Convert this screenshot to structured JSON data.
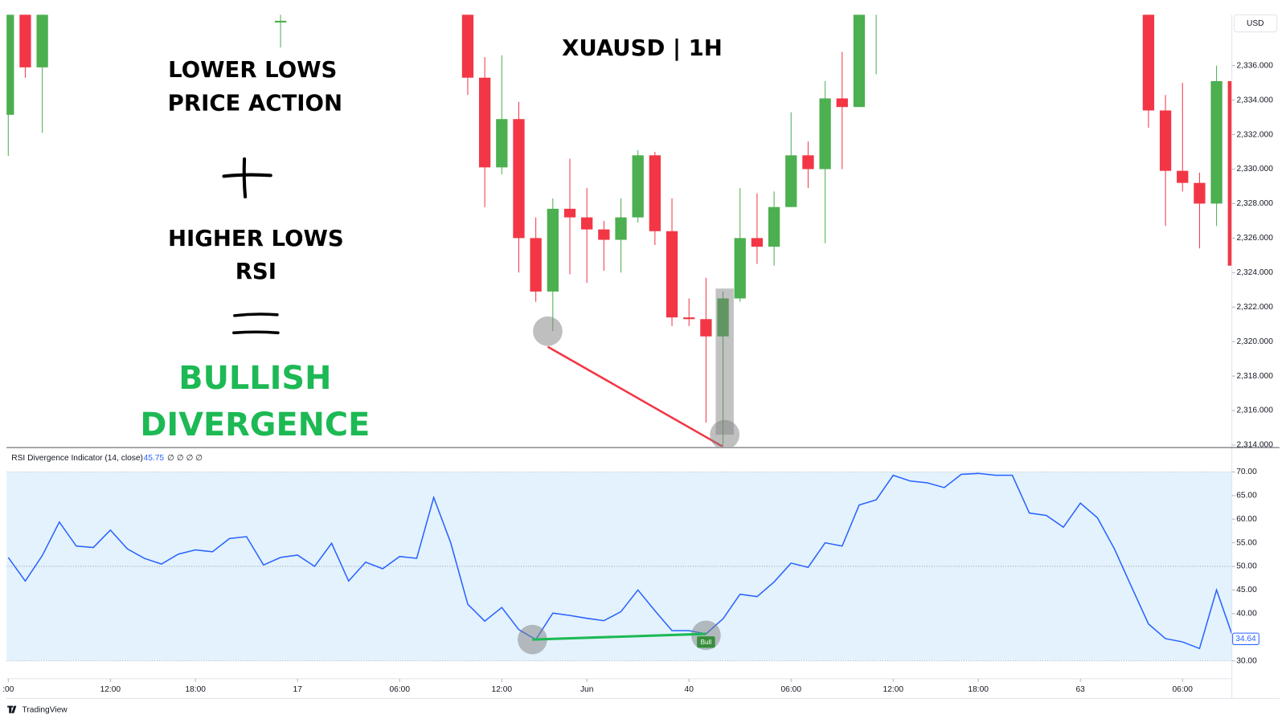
{
  "chart_data": [
    {
      "type": "candlestick",
      "title": "XUAUSD | 1H",
      "currency": "USD",
      "annotations": [
        "LOWER LOWS",
        "PRICE ACTION",
        "HIGHER LOWS",
        "RSI",
        "BULLISH",
        "DIVERGENCE"
      ],
      "x": [
        0,
        1,
        2,
        16,
        27,
        28,
        29,
        30,
        31,
        32,
        33,
        34,
        35,
        36,
        37,
        38,
        39,
        40,
        41,
        42,
        43,
        44,
        45,
        46,
        47,
        48,
        49,
        50,
        51,
        67,
        68,
        69,
        70,
        71,
        72
      ],
      "open": [
        2333.15,
        2339.5,
        2335.9,
        2338.5,
        2339.5,
        2335.3,
        2330.1,
        2332.9,
        2326.0,
        2322.9,
        2327.7,
        2327.2,
        2326.5,
        2325.9,
        2327.2,
        2330.8,
        2326.4,
        2321.4,
        2321.3,
        2320.3,
        2322.5,
        2326.0,
        2325.5,
        2327.8,
        2330.8,
        2330.0,
        2334.1,
        2333.6,
        2339.2,
        2339.5,
        2333.4,
        2329.9,
        2329.2,
        2328.0,
        2335.1
      ],
      "high": [
        2340,
        2340,
        2340,
        2340,
        2340,
        2336.5,
        2336.6,
        2333.9,
        2327.2,
        2328.3,
        2330.6,
        2328.9,
        2327.0,
        2328.3,
        2331.1,
        2331.0,
        2328.3,
        2322.5,
        2323.7,
        2322.9,
        2328.9,
        2328.6,
        2328.7,
        2333.3,
        2331.6,
        2335.1,
        2336.8,
        2340,
        2340,
        2340,
        2334.3,
        2335.0,
        2329.8,
        2336.0,
        2335.1
      ],
      "low": [
        2330.77,
        2335.3,
        2332.1,
        2337.05,
        2334.3,
        2327.8,
        2329.7,
        2324.0,
        2322.3,
        2320.6,
        2323.9,
        2323.4,
        2324.1,
        2324.0,
        2326.9,
        2325.6,
        2320.9,
        2320.9,
        2315.3,
        2314.0,
        2322.3,
        2324.5,
        2324.4,
        2327.8,
        2328.9,
        2325.7,
        2330.0,
        2333.6,
        2335.5,
        2332.4,
        2326.7,
        2328.7,
        2325.4,
        2326.7,
        2324.4
      ],
      "close": [
        2339.5,
        2335.9,
        2339.5,
        2338.6,
        2335.3,
        2330.1,
        2332.9,
        2326.0,
        2322.9,
        2327.7,
        2327.2,
        2326.5,
        2325.9,
        2327.2,
        2330.8,
        2326.4,
        2321.4,
        2321.3,
        2320.3,
        2322.5,
        2326.0,
        2325.5,
        2327.8,
        2330.8,
        2330.0,
        2334.1,
        2333.6,
        2339.5,
        2339.4,
        2333.4,
        2329.9,
        2329.2,
        2328.0,
        2335.1,
        2324.4
      ],
      "up_color": "#4caf50",
      "down_color": "#f23645",
      "xlim": [
        -0.1,
        71.9
      ],
      "ylim": [
        2313.9,
        2338.95
      ],
      "yticks": [
        {
          "value": 2314,
          "label": "2,314.000"
        },
        {
          "value": 2316,
          "label": "2,316.000"
        },
        {
          "value": 2318,
          "label": "2,318.000"
        },
        {
          "value": 2320,
          "label": "2,320.000"
        },
        {
          "value": 2322,
          "label": "2,322.000"
        },
        {
          "value": 2324,
          "label": "2,324.000"
        },
        {
          "value": 2326,
          "label": "2,326.000"
        },
        {
          "value": 2328,
          "label": "2,328.000"
        },
        {
          "value": 2330,
          "label": "2,330.000"
        },
        {
          "value": 2332,
          "label": "2,332.000"
        },
        {
          "value": 2334,
          "label": "2,334.000"
        },
        {
          "value": 2336,
          "label": "2,336.000"
        }
      ],
      "divergence": {
        "color": "#f23645",
        "x": [
          31.7,
          42
        ],
        "values": [
          2319.7,
          2313.9
        ]
      },
      "markers": {
        "x": [
          31.7,
          42.1
        ],
        "values": [
          2320.6,
          2314.6
        ]
      }
    },
    {
      "type": "line",
      "legend_value": 45.75,
      "legend_extra": "∅ ∅ ∅ ∅",
      "signal_label": "Bull",
      "x": [
        0,
        1,
        2,
        3,
        4,
        5,
        6,
        7,
        8,
        9,
        10,
        11,
        12,
        13,
        14,
        15,
        16,
        17,
        18,
        19,
        20,
        21,
        22,
        23,
        24,
        25,
        26,
        27,
        28,
        29,
        30,
        31,
        32,
        33,
        34,
        35,
        36,
        37,
        38,
        39,
        40,
        41,
        42,
        43,
        44,
        45,
        46,
        47,
        48,
        49,
        50,
        51,
        52,
        53,
        54,
        55,
        56,
        57,
        58,
        59,
        60,
        61,
        62,
        63,
        64,
        65,
        66,
        67,
        68,
        69,
        70,
        71,
        72
      ],
      "series": [
        {
          "name": "RSI Divergence Indicator (14, close)",
          "color": "#2962ff",
          "values": [
            51.9,
            46.9,
            52.3,
            59.4,
            54.3,
            54.0,
            57.7,
            53.7,
            51.7,
            50.5,
            52.6,
            53.5,
            53.1,
            55.9,
            56.3,
            50.3,
            51.9,
            52.4,
            50.0,
            54.9,
            46.9,
            50.9,
            49.5,
            52.1,
            51.7,
            64.6,
            55.0,
            42.0,
            38.4,
            41.3,
            36.6,
            34.5,
            40.1,
            39.6,
            39.0,
            38.5,
            40.4,
            45.0,
            40.6,
            36.4,
            36.4,
            35.7,
            38.9,
            44.1,
            43.6,
            46.7,
            50.7,
            49.8,
            55.0,
            54.3,
            63.0,
            64.1,
            69.3,
            68.1,
            67.7,
            66.7,
            69.5,
            69.7,
            69.3,
            69.3,
            61.3,
            60.8,
            58.3,
            63.4,
            60.3,
            53.7,
            45.7,
            37.8,
            34.7,
            34.0,
            32.6,
            45.0,
            34.64
          ]
        }
      ],
      "band": [
        30,
        70
      ],
      "band_color": "#e3f2fd",
      "midline": 50,
      "xlim": [
        -0.1,
        71.9
      ],
      "ylim": [
        26.2,
        75.0
      ],
      "yticks": [
        {
          "value": 30,
          "label": "30.00"
        },
        {
          "value": 35,
          "label": "35.00"
        },
        {
          "value": 40,
          "label": "40.00"
        },
        {
          "value": 45,
          "label": "45.00"
        },
        {
          "value": 50,
          "label": "50.00"
        },
        {
          "value": 55,
          "label": "55.00"
        },
        {
          "value": 60,
          "label": "60.00"
        },
        {
          "value": 65,
          "label": "65.00"
        },
        {
          "value": 70,
          "label": "70.00"
        }
      ],
      "xticks": [
        {
          "value": 0,
          "label": ":00"
        },
        {
          "value": 6,
          "label": "12:00"
        },
        {
          "value": 11,
          "label": "18:00"
        },
        17,
        {
          "value": 23,
          "label": "06:00"
        },
        {
          "value": 29,
          "label": "12:00"
        },
        {
          "value": 34,
          "label": "Jun"
        },
        40,
        {
          "value": 46,
          "label": "06:00"
        },
        {
          "value": 52,
          "label": "12:00"
        },
        {
          "value": 57,
          "label": "18:00"
        },
        63,
        {
          "value": 69,
          "label": "06:00"
        }
      ],
      "divergence": {
        "color": "#1db954",
        "x": [
          30.8,
          41.0
        ],
        "values": [
          34.5,
          35.7
        ]
      },
      "markers": {
        "x": [
          30.8,
          41.0
        ],
        "values": [
          34.5,
          35.4
        ]
      }
    }
  ],
  "footer": "TradingView"
}
